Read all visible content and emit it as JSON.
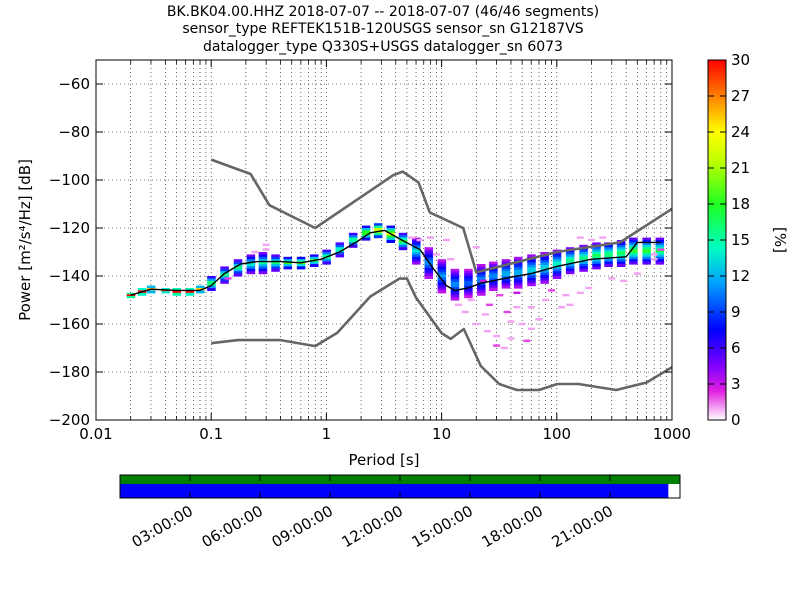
{
  "title_lines": [
    "BK.BK04.00.HHZ   2018-07-07 -- 2018-07-07  (46/46 segments)",
    "sensor_type REFTEK151B-120USGS sensor_sn G12187VS",
    "datalogger_type Q330S+USGS datalogger_sn 6073"
  ],
  "colors": {
    "nlnm_nhnm": "#666666",
    "mean_curve": "#000000",
    "grid": "#000000",
    "coverage_top": "#008000",
    "coverage_bottom": "#0000ff"
  },
  "chart_data": {
    "type": "heatmap",
    "xlabel": "Period [s]",
    "ylabel": "Power [m²/s⁴/Hz] [dB]",
    "xscale": "log",
    "xlim": [
      0.01,
      1000
    ],
    "ylim": [
      -200,
      -50
    ],
    "x_tick_labels": [
      "0.01",
      "0.1",
      "1",
      "10",
      "100",
      "1000"
    ],
    "x_ticks": [
      0.01,
      0.1,
      1,
      10,
      100,
      1000
    ],
    "y_ticks": [
      -60,
      -80,
      -100,
      -120,
      -140,
      -160,
      -180,
      -200
    ],
    "y_tick_labels": [
      "−60",
      "−80",
      "−100",
      "−120",
      "−140",
      "−160",
      "−180",
      "−200"
    ],
    "grid": true,
    "colorbar": {
      "label": "[%]",
      "range": [
        0,
        30
      ],
      "ticks": [
        0,
        3,
        6,
        9,
        12,
        15,
        18,
        21,
        24,
        27,
        30
      ],
      "tick_labels": [
        "0",
        "3",
        "6",
        "9",
        "12",
        "15",
        "18",
        "21",
        "24",
        "27",
        "30"
      ],
      "colormap": "pqlx"
    },
    "nhnm": [
      [
        0.1,
        -91.5
      ],
      [
        0.22,
        -97.5
      ],
      [
        0.32,
        -110.5
      ],
      [
        0.8,
        -120
      ],
      [
        3.8,
        -98
      ],
      [
        4.6,
        -96.5
      ],
      [
        6.3,
        -101
      ],
      [
        7.9,
        -113.5
      ],
      [
        15.4,
        -120
      ],
      [
        20,
        -138.5
      ],
      [
        100,
        -130
      ],
      [
        354,
        -126
      ],
      [
        1000,
        -112
      ]
    ],
    "nlnm": [
      [
        0.1,
        -168
      ],
      [
        0.17,
        -166.7
      ],
      [
        0.4,
        -166.7
      ],
      [
        0.8,
        -169.2
      ],
      [
        1.24,
        -163.7
      ],
      [
        2.4,
        -148.6
      ],
      [
        4.3,
        -141.1
      ],
      [
        5,
        -141.1
      ],
      [
        6,
        -149
      ],
      [
        10,
        -163.8
      ],
      [
        12,
        -166.2
      ],
      [
        15.6,
        -162.1
      ],
      [
        21.9,
        -177.5
      ],
      [
        31.6,
        -185
      ],
      [
        45,
        -187.5
      ],
      [
        70,
        -187.5
      ],
      [
        101,
        -185
      ],
      [
        154,
        -185
      ],
      [
        328,
        -187.5
      ],
      [
        600,
        -184.4
      ],
      [
        1000,
        -178
      ]
    ],
    "mean_psd": [
      [
        0.02,
        -148
      ],
      [
        0.03,
        -145.5
      ],
      [
        0.05,
        -146
      ],
      [
        0.08,
        -146
      ],
      [
        0.1,
        -144
      ],
      [
        0.13,
        -139
      ],
      [
        0.18,
        -135
      ],
      [
        0.25,
        -134
      ],
      [
        0.4,
        -134
      ],
      [
        0.6,
        -134.5
      ],
      [
        0.9,
        -133
      ],
      [
        1.3,
        -130
      ],
      [
        1.8,
        -126
      ],
      [
        2.4,
        -122
      ],
      [
        3.2,
        -121
      ],
      [
        4.5,
        -125
      ],
      [
        6.5,
        -129
      ],
      [
        8.5,
        -137
      ],
      [
        11,
        -144
      ],
      [
        13,
        -146
      ],
      [
        17,
        -145
      ],
      [
        22,
        -143
      ],
      [
        35,
        -141
      ],
      [
        60,
        -139
      ],
      [
        100,
        -136
      ],
      [
        200,
        -133
      ],
      [
        400,
        -132
      ],
      [
        500,
        -126
      ],
      [
        800,
        -126
      ]
    ],
    "psd_density": [
      {
        "x": 0.02,
        "y": [
          -149,
          -147
        ],
        "pct": 28
      },
      {
        "x": 0.025,
        "y": [
          -148,
          -145
        ],
        "pct": 26
      },
      {
        "x": 0.03,
        "y": [
          -147,
          -144
        ],
        "pct": 22
      },
      {
        "x": 0.04,
        "y": [
          -147,
          -145
        ],
        "pct": 25
      },
      {
        "x": 0.05,
        "y": [
          -148,
          -145
        ],
        "pct": 27
      },
      {
        "x": 0.065,
        "y": [
          -148,
          -145
        ],
        "pct": 26
      },
      {
        "x": 0.08,
        "y": [
          -147,
          -144
        ],
        "pct": 22
      },
      {
        "x": 0.1,
        "y": [
          -146,
          -140
        ],
        "pct": 16
      },
      {
        "x": 0.13,
        "y": [
          -143,
          -136
        ],
        "pct": 14
      },
      {
        "x": 0.17,
        "y": [
          -140,
          -133
        ],
        "pct": 14
      },
      {
        "x": 0.22,
        "y": [
          -139,
          -131
        ],
        "pct": 13
      },
      {
        "x": 0.28,
        "y": [
          -139,
          -130
        ],
        "pct": 13
      },
      {
        "x": 0.36,
        "y": [
          -138,
          -131
        ],
        "pct": 14
      },
      {
        "x": 0.46,
        "y": [
          -137,
          -132
        ],
        "pct": 16
      },
      {
        "x": 0.6,
        "y": [
          -137,
          -132
        ],
        "pct": 17
      },
      {
        "x": 0.78,
        "y": [
          -136,
          -131
        ],
        "pct": 16
      },
      {
        "x": 1.0,
        "y": [
          -135,
          -129
        ],
        "pct": 15
      },
      {
        "x": 1.3,
        "y": [
          -132,
          -126
        ],
        "pct": 14
      },
      {
        "x": 1.7,
        "y": [
          -128,
          -122
        ],
        "pct": 15
      },
      {
        "x": 2.2,
        "y": [
          -125,
          -119
        ],
        "pct": 18
      },
      {
        "x": 2.8,
        "y": [
          -124,
          -118
        ],
        "pct": 22
      },
      {
        "x": 3.6,
        "y": [
          -126,
          -119
        ],
        "pct": 20
      },
      {
        "x": 4.6,
        "y": [
          -129,
          -122
        ],
        "pct": 16
      },
      {
        "x": 6.0,
        "y": [
          -135,
          -124
        ],
        "pct": 12
      },
      {
        "x": 7.7,
        "y": [
          -141,
          -128
        ],
        "pct": 10
      },
      {
        "x": 10,
        "y": [
          -147,
          -133
        ],
        "pct": 10
      },
      {
        "x": 13,
        "y": [
          -150,
          -137
        ],
        "pct": 10
      },
      {
        "x": 17,
        "y": [
          -149,
          -137
        ],
        "pct": 9
      },
      {
        "x": 22,
        "y": [
          -148,
          -135
        ],
        "pct": 10
      },
      {
        "x": 28,
        "y": [
          -146,
          -134
        ],
        "pct": 10
      },
      {
        "x": 36,
        "y": [
          -145,
          -133
        ],
        "pct": 11
      },
      {
        "x": 46,
        "y": [
          -145,
          -132
        ],
        "pct": 11
      },
      {
        "x": 60,
        "y": [
          -144,
          -131
        ],
        "pct": 12
      },
      {
        "x": 78,
        "y": [
          -143,
          -130
        ],
        "pct": 12
      },
      {
        "x": 100,
        "y": [
          -141,
          -129
        ],
        "pct": 13
      },
      {
        "x": 130,
        "y": [
          -139,
          -128
        ],
        "pct": 14
      },
      {
        "x": 170,
        "y": [
          -138,
          -127
        ],
        "pct": 14
      },
      {
        "x": 220,
        "y": [
          -137,
          -126
        ],
        "pct": 15
      },
      {
        "x": 280,
        "y": [
          -136,
          -126
        ],
        "pct": 15
      },
      {
        "x": 360,
        "y": [
          -136,
          -125
        ],
        "pct": 15
      },
      {
        "x": 460,
        "y": [
          -135,
          -124
        ],
        "pct": 16
      },
      {
        "x": 600,
        "y": [
          -135,
          -124
        ],
        "pct": 16
      },
      {
        "x": 780,
        "y": [
          -135,
          -124
        ],
        "pct": 15
      }
    ],
    "psd_outliers": [
      {
        "x": 0.3,
        "y": -127,
        "pct": 1
      },
      {
        "x": 0.3,
        "y": -129,
        "pct": 1
      },
      {
        "x": 0.24,
        "y": -130,
        "pct": 1
      },
      {
        "x": 0.14,
        "y": -141,
        "pct": 2
      },
      {
        "x": 5.5,
        "y": -124,
        "pct": 1
      },
      {
        "x": 6.5,
        "y": -125,
        "pct": 1
      },
      {
        "x": 8,
        "y": -124,
        "pct": 1
      },
      {
        "x": 11,
        "y": -125,
        "pct": 1
      },
      {
        "x": 9,
        "y": -131,
        "pct": 1
      },
      {
        "x": 12,
        "y": -133,
        "pct": 1
      },
      {
        "x": 14,
        "y": -152,
        "pct": 1
      },
      {
        "x": 16,
        "y": -155,
        "pct": 1
      },
      {
        "x": 18,
        "y": -150,
        "pct": 1
      },
      {
        "x": 20,
        "y": -160,
        "pct": 1
      },
      {
        "x": 24,
        "y": -156,
        "pct": 1
      },
      {
        "x": 25,
        "y": -163,
        "pct": 1
      },
      {
        "x": 30,
        "y": -165,
        "pct": 1
      },
      {
        "x": 30,
        "y": -169,
        "pct": 2
      },
      {
        "x": 35,
        "y": -170,
        "pct": 1
      },
      {
        "x": 40,
        "y": -166,
        "pct": 1
      },
      {
        "x": 40,
        "y": -159,
        "pct": 1
      },
      {
        "x": 45,
        "y": -153,
        "pct": 1
      },
      {
        "x": 50,
        "y": -160,
        "pct": 1
      },
      {
        "x": 55,
        "y": -167,
        "pct": 2
      },
      {
        "x": 60,
        "y": -162,
        "pct": 1
      },
      {
        "x": 70,
        "y": -158,
        "pct": 1
      },
      {
        "x": 60,
        "y": -153,
        "pct": 1
      },
      {
        "x": 80,
        "y": -150,
        "pct": 1
      },
      {
        "x": 90,
        "y": -146,
        "pct": 2
      },
      {
        "x": 110,
        "y": -153,
        "pct": 1
      },
      {
        "x": 130,
        "y": -152,
        "pct": 1
      },
      {
        "x": 120,
        "y": -148,
        "pct": 1
      },
      {
        "x": 160,
        "y": -147,
        "pct": 1
      },
      {
        "x": 190,
        "y": -145,
        "pct": 1
      },
      {
        "x": 160,
        "y": -124,
        "pct": 1
      },
      {
        "x": 200,
        "y": -125,
        "pct": 1
      },
      {
        "x": 250,
        "y": -124,
        "pct": 1
      },
      {
        "x": 300,
        "y": -141,
        "pct": 1
      },
      {
        "x": 380,
        "y": -142,
        "pct": 1
      },
      {
        "x": 500,
        "y": -139,
        "pct": 1
      },
      {
        "x": 700,
        "y": -133,
        "pct": 1
      },
      {
        "x": 700,
        "y": -131,
        "pct": 1
      },
      {
        "x": 800,
        "y": -129,
        "pct": 2
      },
      {
        "x": 20,
        "y": -128,
        "pct": 1
      },
      {
        "x": 23,
        "y": -142,
        "pct": 3
      },
      {
        "x": 32,
        "y": -148,
        "pct": 2
      },
      {
        "x": 45,
        "y": -147,
        "pct": 3
      },
      {
        "x": 26,
        "y": -152,
        "pct": 2
      },
      {
        "x": 37,
        "y": -155,
        "pct": 2
      }
    ],
    "coverage": {
      "time_tick_labels": [
        "03:00:00",
        "06:00:00",
        "09:00:00",
        "12:00:00",
        "15:00:00",
        "18:00:00",
        "21:00:00"
      ],
      "time_ticks_hours": [
        3,
        6,
        9,
        12,
        15,
        18,
        21
      ],
      "range_hours": [
        0,
        24
      ],
      "top_bar": {
        "start": 0,
        "end": 24
      },
      "bottom_bar": {
        "start": 0,
        "end": 23.5
      }
    }
  }
}
